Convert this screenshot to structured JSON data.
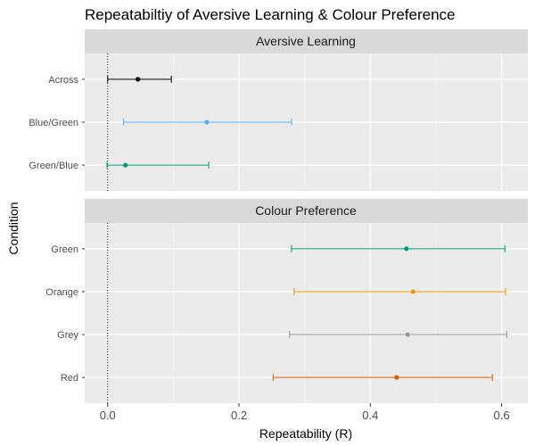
{
  "chart_data": {
    "type": "errorbar",
    "title": "Repeatabiltiy of Aversive Learning & Colour Preference",
    "xlabel": "Repeatability (R)",
    "ylabel": "Condition",
    "xlim": [
      -0.035,
      0.64
    ],
    "xticks": [
      0.0,
      0.2,
      0.4,
      0.6
    ],
    "xtick_labels": [
      "0.0",
      "0.2",
      "0.4",
      "0.6"
    ],
    "reference_line": {
      "x": 0.0,
      "style": "dotted"
    },
    "grid": true,
    "panels": [
      {
        "strip": "Aversive Learning",
        "rows": [
          {
            "label": "Across",
            "estimate": 0.046,
            "lower": 0.0,
            "upper": 0.097,
            "color": "#000000"
          },
          {
            "label": "Blue/Green",
            "estimate": 0.151,
            "lower": 0.024,
            "upper": 0.28,
            "color": "#56B4E9"
          },
          {
            "label": "Green/Blue",
            "estimate": 0.027,
            "lower": -0.001,
            "upper": 0.154,
            "color": "#009E73"
          }
        ]
      },
      {
        "strip": "Colour Preference",
        "rows": [
          {
            "label": "Green",
            "estimate": 0.455,
            "lower": 0.28,
            "upper": 0.605,
            "color": "#009E73"
          },
          {
            "label": "Orange",
            "estimate": 0.465,
            "lower": 0.284,
            "upper": 0.606,
            "color": "#E69F00"
          },
          {
            "label": "Grey",
            "estimate": 0.457,
            "lower": 0.277,
            "upper": 0.608,
            "color": "#999999"
          },
          {
            "label": "Red",
            "estimate": 0.44,
            "lower": 0.252,
            "upper": 0.586,
            "color": "#D55E00"
          }
        ]
      }
    ]
  }
}
